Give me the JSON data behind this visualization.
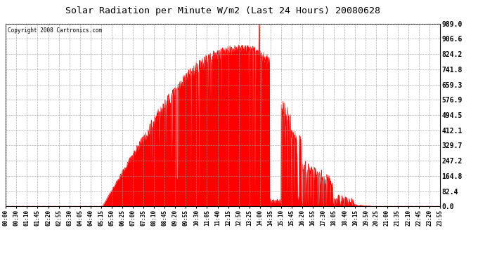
{
  "title": "Solar Radiation per Minute W/m2 (Last 24 Hours) 20080628",
  "copyright": "Copyright 2008 Cartronics.com",
  "bg_color": "#ffffff",
  "fill_color": "#ff0000",
  "line_color": "#ff0000",
  "dashed_line_color": "#ff0000",
  "grid_color": "#999999",
  "ymin": 0.0,
  "ymax": 989.0,
  "yticks": [
    0.0,
    82.4,
    164.8,
    247.2,
    329.7,
    412.1,
    494.5,
    576.9,
    659.3,
    741.8,
    824.2,
    906.6,
    989.0
  ],
  "xtick_labels": [
    "00:00",
    "00:30",
    "01:10",
    "01:45",
    "02:20",
    "02:55",
    "03:30",
    "04:05",
    "04:40",
    "05:15",
    "05:50",
    "06:25",
    "07:00",
    "07:35",
    "08:10",
    "08:45",
    "09:20",
    "09:55",
    "10:30",
    "11:05",
    "11:40",
    "12:15",
    "12:50",
    "13:25",
    "14:00",
    "14:35",
    "15:10",
    "15:45",
    "16:20",
    "16:55",
    "17:30",
    "18:05",
    "18:40",
    "19:15",
    "19:50",
    "20:25",
    "21:00",
    "21:35",
    "22:10",
    "22:45",
    "23:20",
    "23:55"
  ],
  "n_points": 1440
}
